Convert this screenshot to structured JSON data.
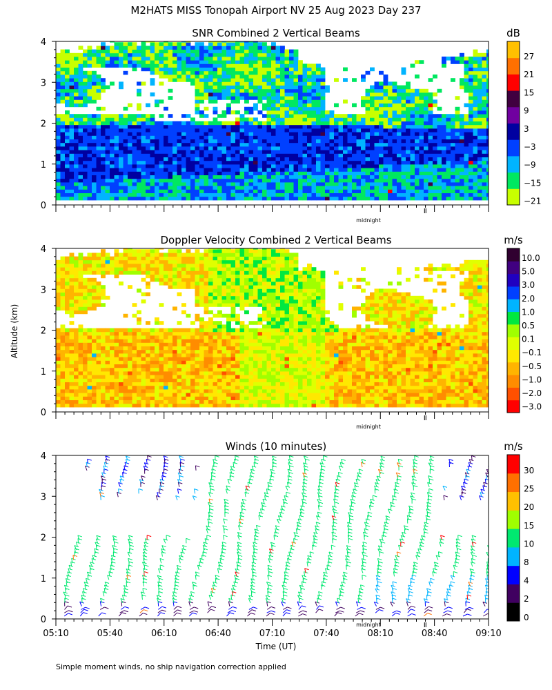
{
  "title": "M2HATS MISS Tonopah Airport NV  25 Aug 2023 Day 237",
  "footnote": "Simple moment winds, no ship navigation correction applied",
  "xlabel": "Time (UT)",
  "ylabel": "Altitude (km)",
  "midnight_label": "midnight",
  "colors": {
    "snr_scale": [
      "#c8ff00",
      "#00e860",
      "#00b4ff",
      "#0040ff",
      "#0000a0",
      "#7000a0",
      "#400040",
      "#ff0000",
      "#ff7000",
      "#ffc000"
    ],
    "doppler_scale": [
      "#ff0000",
      "#ff5000",
      "#ff8c00",
      "#ffb400",
      "#ffe800",
      "#e0ff00",
      "#a0ff00",
      "#00e840",
      "#00b4ff",
      "#0040ff",
      "#2000c0",
      "#400080",
      "#300030"
    ],
    "wind_scale": [
      "#000000",
      "#400060",
      "#0000ff",
      "#00b4ff",
      "#00e870",
      "#a0ff00",
      "#ffc000",
      "#ff7000",
      "#ff0000"
    ]
  },
  "chart_data": [
    {
      "type": "heatmap",
      "title": "SNR Combined 2 Vertical Beams",
      "xlabel": "",
      "ylabel": "Altitude (km)",
      "x_range": [
        "05:10",
        "09:10"
      ],
      "ylim": [
        0,
        4
      ],
      "yticks": [
        "0",
        "1",
        "2",
        "3",
        "4"
      ],
      "colorbar_unit": "dB",
      "colorbar_ticks": [
        "27",
        "21",
        "15",
        "9",
        "3",
        "−3",
        "−9",
        "−15",
        "−21"
      ],
      "description_values": {
        "strong_layer_altitude_km": [
          0.5,
          2.0
        ],
        "echo_top_km": 3.8
      }
    },
    {
      "type": "heatmap",
      "title": "Doppler Velocity Combined 2 Vertical Beams",
      "xlabel": "",
      "ylabel": "Altitude (km)",
      "x_range": [
        "05:10",
        "09:10"
      ],
      "ylim": [
        0,
        4
      ],
      "yticks": [
        "0",
        "1",
        "2",
        "3",
        "4"
      ],
      "colorbar_unit": "m/s",
      "colorbar_ticks": [
        "10.0",
        "5.0",
        "3.0",
        "2.0",
        "1.0",
        "0.5",
        "0.1",
        "−0.1",
        "−0.5",
        "−1.0",
        "−2.0",
        "−3.0"
      ]
    },
    {
      "type": "scatter",
      "title": "Winds (10 minutes)",
      "xlabel": "Time (UT)",
      "ylabel": "Altitude (km)",
      "xticks": [
        "05:10",
        "05:40",
        "06:10",
        "06:40",
        "07:10",
        "07:40",
        "08:10",
        "08:40",
        "09:10"
      ],
      "ylim": [
        0,
        4
      ],
      "yticks": [
        "0",
        "1",
        "2",
        "3",
        "4"
      ],
      "colorbar_unit": "m/s",
      "colorbar_ticks": [
        "30",
        "25",
        "20",
        "15",
        "10",
        "8",
        "4",
        "2",
        "0"
      ],
      "profile_interval_minutes": 10,
      "profile_count": 24
    }
  ]
}
